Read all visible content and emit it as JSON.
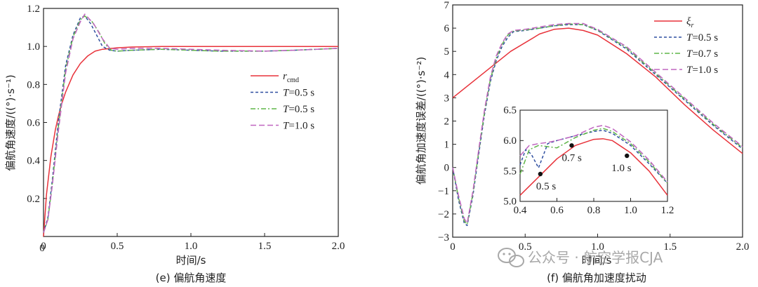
{
  "colors": {
    "red": "#e8323a",
    "blue": "#2f4fa0",
    "green": "#5fb548",
    "purple": "#c066c0"
  },
  "chart_data": [
    {
      "type": "line",
      "caption": "(e) 偏航角速度",
      "xlabel": "时间/s",
      "ylabel": "偏航角速度/((°)·s⁻¹)",
      "xlim": [
        0,
        2.0
      ],
      "ylim": [
        0,
        1.2
      ],
      "xticks": [
        "0",
        "0.5",
        "1.0",
        "1.5",
        "2.0"
      ],
      "xtick_values": [
        0,
        0.5,
        1.0,
        1.5,
        2.0
      ],
      "yticks": [
        "0.2",
        "0.4",
        "0.6",
        "0.8",
        "1.0",
        "1.2"
      ],
      "ytick_values": [
        0.2,
        0.4,
        0.6,
        0.8,
        1.0,
        1.2
      ],
      "yzero_label": "0",
      "legend_position": "center-right",
      "series": [
        {
          "name_main": "r",
          "name_sub": "cmd",
          "name_rest": "",
          "color": "red",
          "dash": "solid",
          "x": [
            0,
            0.02,
            0.05,
            0.08,
            0.1,
            0.12,
            0.15,
            0.2,
            0.25,
            0.3,
            0.35,
            0.4,
            0.5,
            0.6,
            0.8,
            1.0,
            1.5,
            2.0
          ],
          "y": [
            0,
            0.22,
            0.42,
            0.56,
            0.63,
            0.69,
            0.76,
            0.85,
            0.91,
            0.95,
            0.975,
            0.985,
            0.993,
            0.997,
            1.0,
            1.0,
            1.0,
            1.0
          ]
        },
        {
          "name_main": "T",
          "name_sub": "",
          "name_rest": "=0.5 s",
          "color": "blue",
          "dash": "4,3",
          "x": [
            0,
            0.03,
            0.06,
            0.1,
            0.15,
            0.2,
            0.25,
            0.28,
            0.32,
            0.36,
            0.4,
            0.45,
            0.5,
            0.6,
            0.8,
            1.0,
            1.2,
            1.5,
            1.7,
            2.0
          ],
          "y": [
            0.02,
            0.1,
            0.3,
            0.6,
            0.9,
            1.06,
            1.15,
            1.16,
            1.12,
            1.06,
            1.0,
            0.98,
            0.975,
            0.98,
            0.985,
            0.98,
            0.975,
            0.975,
            0.98,
            0.99
          ]
        },
        {
          "name_main": "T",
          "name_sub": "",
          "name_rest": "=0.5 s",
          "color": "green",
          "dash": "7,3,2,3",
          "x": [
            0,
            0.03,
            0.06,
            0.1,
            0.15,
            0.2,
            0.25,
            0.28,
            0.33,
            0.38,
            0.42,
            0.46,
            0.5,
            0.6,
            0.8,
            1.0,
            1.2,
            1.5,
            1.7,
            2.0
          ],
          "y": [
            0.02,
            0.09,
            0.28,
            0.57,
            0.88,
            1.05,
            1.14,
            1.16,
            1.13,
            1.07,
            1.01,
            0.98,
            0.975,
            0.98,
            0.985,
            0.98,
            0.975,
            0.975,
            0.98,
            0.99
          ]
        },
        {
          "name_main": "T",
          "name_sub": "",
          "name_rest": "=1.0 s",
          "color": "purple",
          "dash": "8,4",
          "x": [
            0,
            0.03,
            0.06,
            0.1,
            0.15,
            0.2,
            0.25,
            0.28,
            0.34,
            0.4,
            0.45,
            0.5,
            0.6,
            0.8,
            1.0,
            1.2,
            1.5,
            1.7,
            2.0
          ],
          "y": [
            0.02,
            0.09,
            0.27,
            0.55,
            0.86,
            1.04,
            1.13,
            1.17,
            1.12,
            1.04,
            0.99,
            0.985,
            0.99,
            0.99,
            0.985,
            0.98,
            0.975,
            0.98,
            0.99
          ]
        }
      ]
    },
    {
      "type": "line",
      "caption": "(f) 偏航角加速度扰动",
      "xlabel": "时间/s",
      "ylabel": "偏航角加速度误差/((°)·s⁻²)",
      "xlim": [
        0,
        2.0
      ],
      "ylim": [
        -3,
        7
      ],
      "xticks": [
        "0",
        "0.5",
        "1.0",
        "1.5",
        "2.0"
      ],
      "xtick_values": [
        0,
        0.5,
        1.0,
        1.5,
        2.0
      ],
      "yticks": [
        "−3",
        "−2",
        "−1",
        "0",
        "1",
        "2",
        "3",
        "4",
        "5",
        "6",
        "7"
      ],
      "ytick_values": [
        -3,
        -2,
        -1,
        0,
        1,
        2,
        3,
        4,
        5,
        6,
        7
      ],
      "legend_position": "top-right",
      "series": [
        {
          "name_main": "ξ",
          "name_sub": "r",
          "name_rest": "",
          "color": "red",
          "dash": "solid",
          "x": [
            0,
            0.2,
            0.4,
            0.6,
            0.7,
            0.8,
            0.9,
            1.0,
            1.2,
            1.4,
            1.6,
            1.8,
            2.0
          ],
          "y": [
            3.0,
            4.0,
            5.0,
            5.75,
            5.95,
            6.0,
            5.9,
            5.7,
            4.9,
            3.9,
            2.7,
            1.6,
            0.6
          ]
        },
        {
          "name_main": "T",
          "name_sub": "",
          "name_rest": "=0.5 s",
          "color": "blue",
          "dash": "4,3",
          "x": [
            0,
            0.04,
            0.08,
            0.1,
            0.14,
            0.18,
            0.22,
            0.26,
            0.3,
            0.34,
            0.38,
            0.42,
            0.5,
            0.6,
            0.7,
            0.8,
            0.9,
            1.0,
            1.2,
            1.4,
            1.6,
            1.8,
            2.0
          ],
          "y": [
            0,
            -1.4,
            -2.4,
            -2.5,
            -1.2,
            0.6,
            2.3,
            3.7,
            4.6,
            5.2,
            5.6,
            5.85,
            5.9,
            6.0,
            6.1,
            6.15,
            6.15,
            5.9,
            5.1,
            4.0,
            2.9,
            1.8,
            0.8
          ]
        },
        {
          "name_main": "T",
          "name_sub": "",
          "name_rest": "=0.7 s",
          "color": "green",
          "dash": "7,3,2,3",
          "x": [
            0,
            0.04,
            0.08,
            0.1,
            0.14,
            0.18,
            0.22,
            0.26,
            0.3,
            0.34,
            0.38,
            0.42,
            0.5,
            0.6,
            0.7,
            0.8,
            0.9,
            1.0,
            1.2,
            1.4,
            1.6,
            1.8,
            2.0
          ],
          "y": [
            0,
            -1.3,
            -2.3,
            -2.45,
            -1.1,
            0.7,
            2.4,
            3.8,
            4.7,
            5.3,
            5.7,
            5.88,
            5.92,
            6.0,
            6.1,
            6.18,
            6.15,
            5.92,
            5.15,
            4.05,
            2.95,
            1.85,
            0.85
          ]
        },
        {
          "name_main": "T",
          "name_sub": "",
          "name_rest": "=1.0 s",
          "color": "purple",
          "dash": "8,4",
          "x": [
            0,
            0.04,
            0.08,
            0.1,
            0.14,
            0.18,
            0.22,
            0.26,
            0.3,
            0.34,
            0.38,
            0.42,
            0.5,
            0.6,
            0.7,
            0.8,
            0.9,
            1.0,
            1.2,
            1.4,
            1.6,
            1.8,
            2.0
          ],
          "y": [
            0,
            -1.2,
            -2.2,
            -2.4,
            -1.0,
            0.8,
            2.5,
            3.9,
            4.8,
            5.35,
            5.75,
            5.9,
            5.95,
            6.05,
            6.15,
            6.2,
            6.2,
            5.95,
            5.2,
            4.1,
            3.0,
            1.9,
            0.9
          ]
        }
      ],
      "inset": {
        "xlim": [
          0.4,
          1.2
        ],
        "ylim": [
          5.0,
          6.5
        ],
        "xticks": [
          "0.4",
          "0.6",
          "0.8",
          "1.0",
          "1.2"
        ],
        "xtick_values": [
          0.4,
          0.6,
          0.8,
          1.0,
          1.2
        ],
        "yticks": [
          "5.0",
          "5.5",
          "6.0",
          "6.5"
        ],
        "ytick_values": [
          5.0,
          5.5,
          6.0,
          6.5
        ],
        "series": [
          {
            "color": "red",
            "dash": "solid",
            "x": [
              0.4,
              0.5,
              0.6,
              0.7,
              0.8,
              0.85,
              0.9,
              1.0,
              1.1,
              1.2
            ],
            "y": [
              5.1,
              5.4,
              5.7,
              5.92,
              6.02,
              6.03,
              6.0,
              5.8,
              5.5,
              5.1
            ]
          },
          {
            "color": "blue",
            "dash": "4,3",
            "x": [
              0.4,
              0.43,
              0.46,
              0.5,
              0.55,
              0.6,
              0.7,
              0.8,
              0.85,
              0.9,
              1.0,
              1.1,
              1.2
            ],
            "y": [
              5.6,
              5.85,
              5.78,
              5.55,
              5.95,
              6.0,
              6.08,
              6.15,
              6.17,
              6.12,
              5.92,
              5.62,
              5.3
            ]
          },
          {
            "color": "green",
            "dash": "7,3,2,3",
            "x": [
              0.4,
              0.45,
              0.5,
              0.55,
              0.6,
              0.7,
              0.8,
              0.85,
              0.9,
              1.0,
              1.1,
              1.2
            ],
            "y": [
              5.45,
              5.85,
              5.92,
              5.9,
              5.88,
              6.05,
              6.17,
              6.2,
              6.15,
              5.95,
              5.65,
              5.3
            ]
          },
          {
            "color": "purple",
            "dash": "8,4",
            "x": [
              0.4,
              0.45,
              0.5,
              0.55,
              0.6,
              0.7,
              0.8,
              0.85,
              0.9,
              1.0,
              1.1,
              1.2
            ],
            "y": [
              5.75,
              5.92,
              5.95,
              5.97,
              6.0,
              6.08,
              6.22,
              6.25,
              6.2,
              5.98,
              5.68,
              5.32
            ]
          }
        ],
        "markers": [
          {
            "label": "0.5 s",
            "x": 0.51,
            "y": 5.45
          },
          {
            "label": "0.7 s",
            "x": 0.68,
            "y": 5.92
          },
          {
            "label": "1.0 s",
            "x": 0.98,
            "y": 5.75
          }
        ]
      }
    }
  ],
  "watermark": "公众号 · 航空学报CJA"
}
